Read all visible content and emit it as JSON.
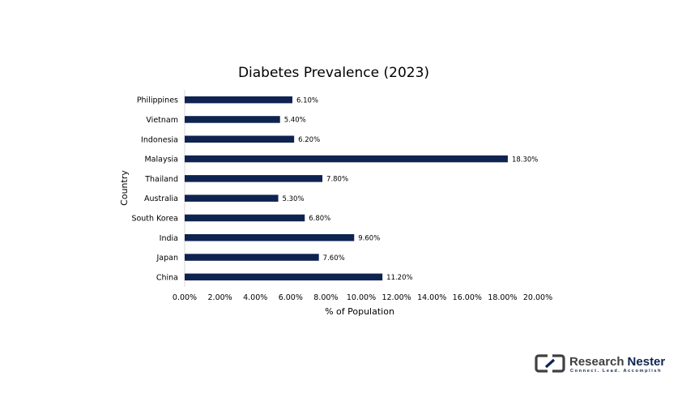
{
  "chart_data": {
    "type": "bar",
    "orientation": "horizontal",
    "title": "Diabetes Prevalence (2023)",
    "xlabel": "% of Population",
    "ylabel": "Country",
    "categories": [
      "Philippines",
      "Vietnam",
      "Indonesia",
      "Malaysia",
      "Thailand",
      "Australia",
      "South Korea",
      "India",
      "Japan",
      "China"
    ],
    "values": [
      6.1,
      5.4,
      6.2,
      18.3,
      7.8,
      5.3,
      6.8,
      9.6,
      7.6,
      11.2
    ],
    "value_labels": [
      "6.10%",
      "5.40%",
      "6.20%",
      "18.30%",
      "7.80%",
      "5.30%",
      "6.80%",
      "9.60%",
      "7.60%",
      "11.20%"
    ],
    "xlim": [
      0,
      20
    ],
    "xticks": [
      "0.00%",
      "2.00%",
      "4.00%",
      "6.00%",
      "8.00%",
      "10.00%",
      "12.00%",
      "14.00%",
      "16.00%",
      "18.00%",
      "20.00%"
    ],
    "grid": false,
    "legend": "none",
    "bar_color": "#0f2350"
  },
  "logo": {
    "name_part1": "Research",
    "name_part2": "Nester",
    "tagline": "Connect. Lead. Accomplish",
    "color_dark": "#404040",
    "color_accent": "#0f2350"
  }
}
